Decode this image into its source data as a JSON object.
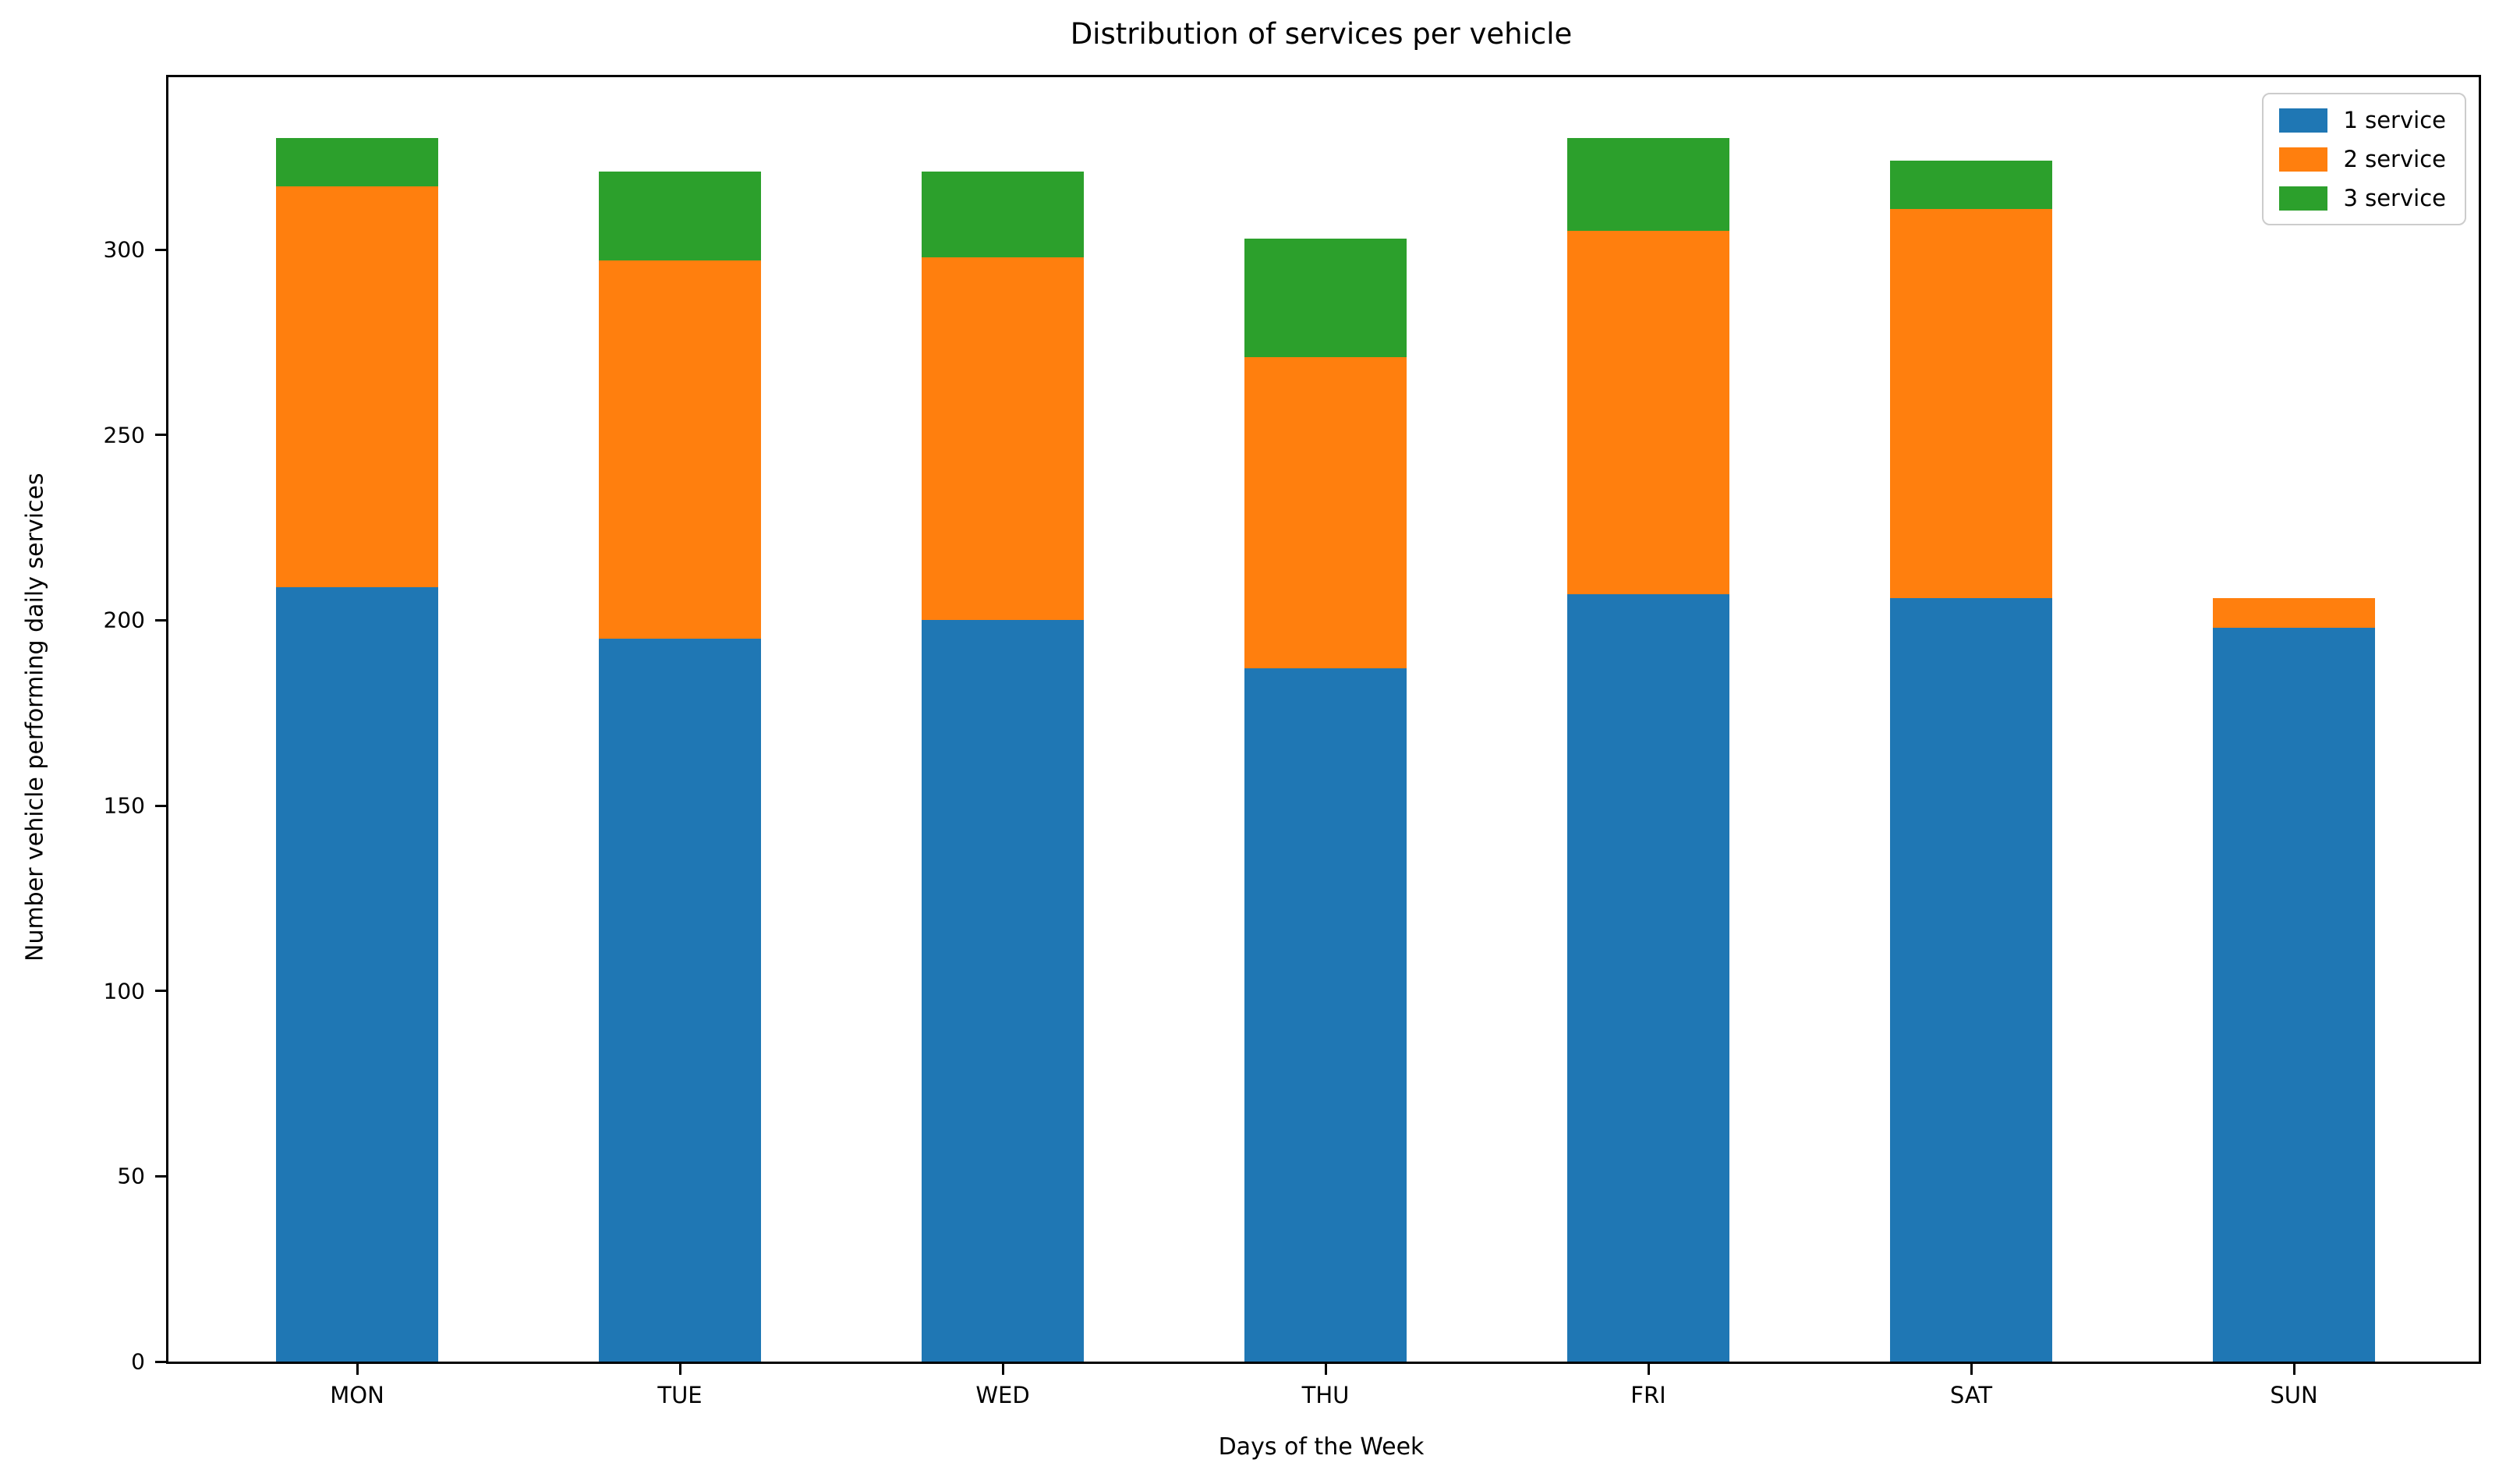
{
  "chart_data": {
    "type": "bar",
    "stacked": true,
    "title": "Distribution of services per vehicle",
    "xlabel": "Days of the Week",
    "ylabel": "Number vehicle performing daily services",
    "categories": [
      "MON",
      "TUE",
      "WED",
      "THU",
      "FRI",
      "SAT",
      "SUN"
    ],
    "series": [
      {
        "name": "1 service",
        "color": "#1f77b4",
        "values": [
          209,
          195,
          200,
          187,
          207,
          206,
          198
        ]
      },
      {
        "name": "2 service",
        "color": "#ff7f0e",
        "values": [
          108,
          102,
          98,
          84,
          98,
          105,
          8
        ]
      },
      {
        "name": "3 service",
        "color": "#2ca02c",
        "values": [
          13,
          24,
          23,
          32,
          25,
          13,
          0
        ]
      }
    ],
    "yticks": [
      0,
      50,
      100,
      150,
      200,
      250,
      300
    ],
    "ylim": [
      0,
      346.5
    ],
    "grid": false,
    "legend": {
      "position": "upper right",
      "entries": [
        "1 service",
        "2 service",
        "3 service"
      ]
    }
  },
  "colors": {
    "background": "#ffffff",
    "axis": "#000000",
    "text": "#000000",
    "legend_border": "#cccccc"
  }
}
